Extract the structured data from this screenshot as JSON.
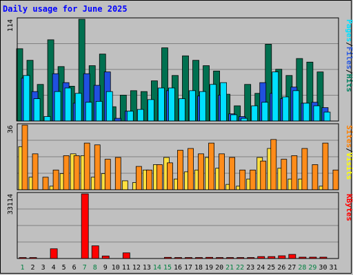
{
  "chart_data": {
    "type": "bar",
    "title": "Daily usage for June 2025",
    "categories": [
      "1",
      "2",
      "3",
      "4",
      "5",
      "6",
      "7",
      "8",
      "9",
      "10",
      "11",
      "12",
      "13",
      "14",
      "15",
      "16",
      "17",
      "18",
      "19",
      "20",
      "21",
      "22",
      "23",
      "24",
      "25",
      "26",
      "27",
      "28",
      "29",
      "30",
      "31"
    ],
    "weekend_days": [
      "1",
      "7",
      "8",
      "14",
      "15",
      "21",
      "22",
      "28",
      "29"
    ],
    "panels": [
      {
        "id": "hits-files-pages",
        "ymax_label": "114",
        "ymax": 114,
        "legend": [
          {
            "text": "Pages",
            "color": "#00e0ff"
          },
          {
            "text": "/",
            "color": "#000000"
          },
          {
            "text": "Files",
            "color": "#2a5ae0"
          },
          {
            "text": "/",
            "color": "#000000"
          },
          {
            "text": "Hits",
            "color": "#008060"
          }
        ],
        "series": [
          {
            "name": "Hits",
            "color": "#007050",
            "values": [
              81,
              68,
              41,
              91,
              61,
              39,
              114,
              62,
              75,
              16,
              29,
              34,
              33,
              45,
              82,
              51,
              73,
              68,
              62,
              56,
              30,
              17,
              41,
              31,
              86,
              58,
              51,
              70,
              66,
              55,
              0
            ]
          },
          {
            "name": "Files",
            "color": "#2050e0",
            "values": [
              48,
              33,
              0,
              53,
              43,
              20,
              53,
              40,
              55,
              3,
              11,
              0,
              0,
              0,
              34,
              0,
              0,
              28,
              0,
              29,
              8,
              5,
              0,
              43,
              31,
              25,
              38,
              20,
              21,
              15,
              0
            ]
          },
          {
            "name": "Pages",
            "color": "#00e0ff",
            "values": [
              51,
              25,
              5,
              33,
              37,
              31,
              21,
              22,
              33,
              0,
              11,
              13,
              24,
              37,
              37,
              25,
              34,
              33,
              41,
              43,
              7,
              3,
              17,
              21,
              55,
              27,
              34,
              20,
              17,
              10,
              0
            ]
          }
        ]
      },
      {
        "id": "visits-sites",
        "ymax_label": "36",
        "ymax": 36,
        "legend": [
          {
            "text": "Sites",
            "color": "#ff8000"
          },
          {
            "text": "/",
            "color": "#000000"
          },
          {
            "text": "Visits",
            "color": "#ffff00"
          }
        ],
        "series": [
          {
            "name": "Visits",
            "color": "#ffe040",
            "values": [
              24,
              7,
              0,
              2,
              9,
              20,
              19,
              7,
              9,
              0,
              5,
              4,
              11,
              14,
              18,
              6,
              10,
              11,
              18,
              12,
              3,
              2,
              6,
              18,
              23,
              12,
              6,
              6,
              0,
              2,
              0
            ]
          },
          {
            "name": "Sites",
            "color": "#ff8c1a",
            "values": [
              36,
              20,
              7,
              11,
              19,
              19,
              26,
              25,
              17,
              18,
              0,
              13,
              11,
              14,
              15,
              22,
              23,
              20,
              26,
              20,
              18,
              11,
              11,
              16,
              28,
              17,
              19,
              23,
              14,
              26,
              11
            ]
          }
        ]
      },
      {
        "id": "kbytes",
        "ymax_label": "33114",
        "ymax": 33114,
        "legend": [
          {
            "text": "KBytes",
            "color": "#ff0000"
          }
        ],
        "series": [
          {
            "name": "KBytes",
            "color": "#ff0000",
            "values": [
              500,
              500,
              0,
              5000,
              0,
              0,
              33114,
              6500,
              1300,
              0,
              2900,
              0,
              0,
              0,
              600,
              500,
              500,
              500,
              600,
              500,
              500,
              500,
              500,
              1000,
              1000,
              1400,
              2100,
              700,
              700,
              700,
              0
            ]
          }
        ]
      }
    ]
  }
}
